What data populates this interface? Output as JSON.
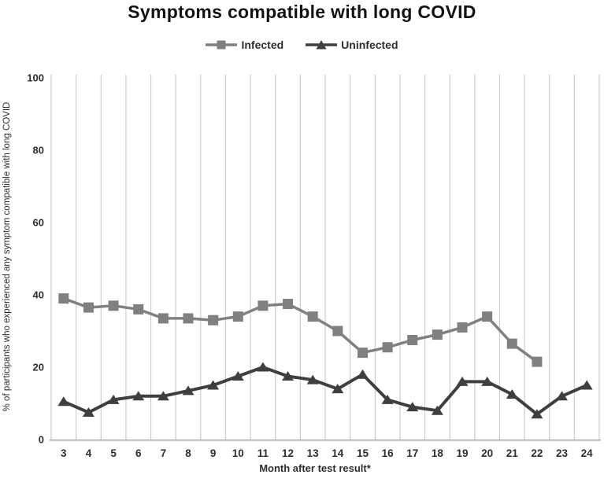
{
  "chart": {
    "title": "Symptoms compatible with long COVID",
    "x_axis_title": "Month after test result*",
    "y_axis_title": "% of participants who experienced any symptom compatible with long COVID"
  },
  "legend": {
    "items": [
      {
        "label": "Infected",
        "marker": "square-marker-icon",
        "color": "#808080"
      },
      {
        "label": "Uninfected",
        "marker": "triangle-marker-icon",
        "color": "#3f3f3f"
      }
    ]
  },
  "colors": {
    "gridline": "#cccccc",
    "axis_line": "#a6a6a6",
    "tick_text": "#2e2e2e",
    "infected": "#808080",
    "uninfected": "#3f3f3f"
  },
  "chart_data": {
    "type": "line",
    "title": "Symptoms compatible with long COVID",
    "xlabel": "Month after test result*",
    "ylabel": "% of participants who experienced any symptom compatible with long COVID",
    "categories": [
      3,
      4,
      5,
      6,
      7,
      8,
      9,
      10,
      11,
      12,
      13,
      14,
      15,
      16,
      17,
      18,
      19,
      20,
      21,
      22,
      23,
      24
    ],
    "series": [
      {
        "name": "Infected",
        "marker": "square",
        "color": "#808080",
        "values": [
          39,
          36.5,
          37,
          36,
          33.5,
          33.5,
          33,
          34,
          37,
          37.5,
          34,
          30,
          24,
          25.5,
          27.5,
          29,
          31,
          34,
          26.5,
          21.5,
          null,
          null
        ]
      },
      {
        "name": "Uninfected",
        "marker": "triangle",
        "color": "#3f3f3f",
        "values": [
          10.5,
          7.5,
          11,
          12,
          12,
          13.5,
          15,
          17.5,
          20,
          17.5,
          16.5,
          14,
          18,
          11,
          9,
          8,
          16,
          16,
          12.5,
          7,
          12,
          15
        ]
      }
    ],
    "ylim": [
      0,
      100
    ],
    "y_ticks": [
      0,
      20,
      40,
      60,
      80,
      100
    ],
    "grid": "vertical-only",
    "legend_position": "top-center"
  }
}
